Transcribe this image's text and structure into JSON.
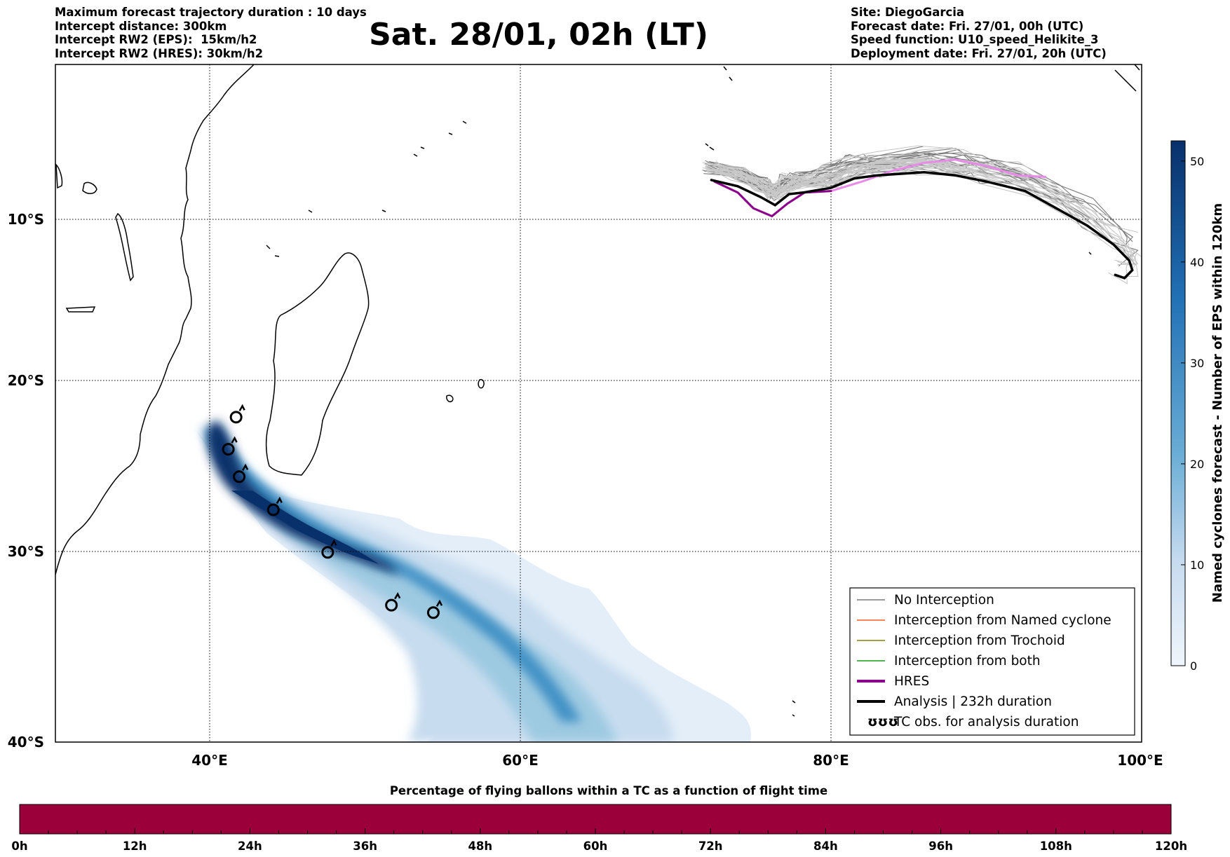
{
  "header": {
    "left": [
      "Maximum forecast trajectory duration : 10 days",
      "Intercept distance: 300km",
      "Intercept RW2 (EPS):  15km/h2",
      "Intercept RW2 (HRES): 30km/h2"
    ],
    "title": "Sat. 28/01, 02h (LT)",
    "right": [
      "Site: DiegoGarcia",
      "Forecast date: Fri. 27/01, 00h (UTC)",
      "Speed function: U10_speed_Helikite_3",
      "Deployment date: Fri. 27/01, 20h (UTC)"
    ]
  },
  "map": {
    "lat_labels": [
      "10°S",
      "20°S",
      "30°S",
      "40°S"
    ],
    "lon_labels": [
      "40°E",
      "60°E",
      "80°E",
      "100°E"
    ],
    "extent": {
      "lon": [
        30,
        100
      ],
      "lat": [
        -40.5,
        1.5
      ]
    }
  },
  "legend": {
    "items": [
      {
        "label": "No Interception",
        "color": "#7a7a7a",
        "kind": "thin"
      },
      {
        "label": "Interception from Named cyclone",
        "color": "#ff5a1f",
        "kind": "thin"
      },
      {
        "label": "Interception from Trochoid",
        "color": "#808000",
        "kind": "thin"
      },
      {
        "label": "Interception from both",
        "color": "#1a9a1a",
        "kind": "thin"
      },
      {
        "label": "HRES",
        "color": "#8b008b",
        "kind": "thick"
      },
      {
        "label": "Analysis | 232h duration",
        "color": "#000000",
        "kind": "thick"
      },
      {
        "label": "TC obs. for analysis duration",
        "color": "#000000",
        "kind": "symbol",
        "symbol": "ʊʊʊ"
      }
    ]
  },
  "colorbar": {
    "label": "Named cyclones forecast - Number of EPS within 120km",
    "ticks": [
      "0",
      "10",
      "20",
      "30",
      "40",
      "50"
    ],
    "tick_values": [
      0,
      10,
      20,
      30,
      40,
      50
    ],
    "max": 52,
    "colors": {
      "low": "#f0f6fc",
      "high": "#08306b"
    }
  },
  "flight_bar": {
    "title": "Percentage of flying ballons within a TC as a function of flight time",
    "color": "#9b003a",
    "ticks": [
      "0h",
      "12h",
      "24h",
      "36h",
      "48h",
      "60h",
      "72h",
      "84h",
      "96h",
      "108h",
      "120h"
    ]
  },
  "chart_data": {
    "type": "map",
    "analysis_track": {
      "lon": [
        72.3,
        74,
        75.5,
        76.4,
        77.3,
        78.2,
        80,
        81.5,
        83,
        86,
        88,
        90,
        92.5,
        94.5,
        96.5,
        98.2,
        99.2,
        99.4,
        98.9,
        98.3
      ],
      "lat": [
        -7.5,
        -7.9,
        -8.6,
        -9.1,
        -8.4,
        -8.3,
        -8.0,
        -7.4,
        -7.2,
        -7.0,
        -7.2,
        -7.6,
        -8.2,
        -9.3,
        -10.4,
        -11.6,
        -12.6,
        -13.2,
        -13.7,
        -13.5
      ]
    },
    "hres_track": {
      "lon": [
        72.5,
        74,
        75,
        76.2,
        77.2,
        78.3,
        80,
        82,
        84,
        86,
        88,
        90,
        92,
        93.8
      ],
      "lat": [
        -7.6,
        -8.3,
        -9.3,
        -9.8,
        -9.0,
        -8.3,
        -8.2,
        -7.6,
        -6.9,
        -6.4,
        -6.2,
        -6.6,
        -7.2,
        -7.3
      ]
    },
    "tc_obs": {
      "lon": [
        41.7,
        41.2,
        41.9,
        44.1,
        47.6,
        51.7,
        54.4
      ],
      "lat": [
        -22.2,
        -24.1,
        -25.7,
        -27.6,
        -30.0,
        -32.9,
        -33.3
      ]
    }
  }
}
